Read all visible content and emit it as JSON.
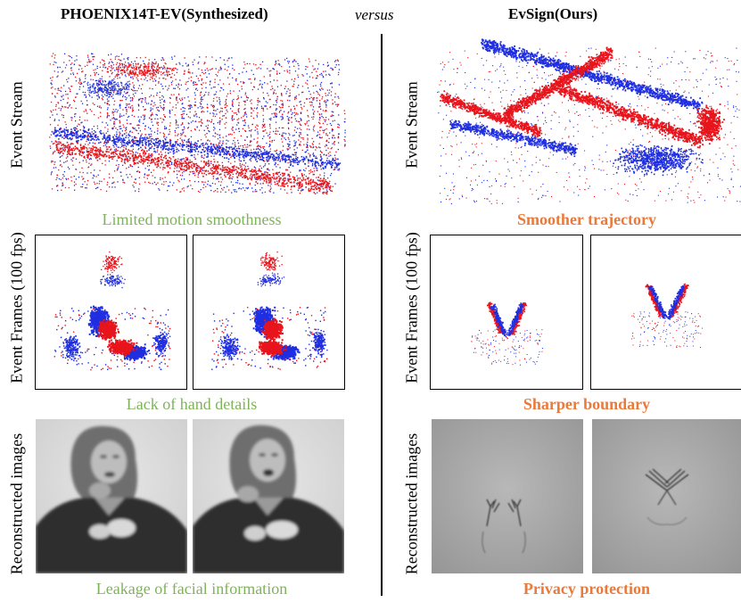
{
  "header": {
    "left_title": "PHOENIX14T-EV(Synthesized)",
    "middle": "versus",
    "right_title": "EvSign(Ours)"
  },
  "row_labels": {
    "stream": "Event Stream",
    "frames": "Event Frames  (100 fps)",
    "recon": "Reconstructed images"
  },
  "captions": {
    "left": {
      "stream": "Limited motion smoothness",
      "frames": "Lack of hand details",
      "recon": "Leakage of facial information"
    },
    "right": {
      "stream": "Smoother trajectory",
      "frames": "Sharper boundary",
      "recon": "Privacy protection"
    }
  },
  "colors": {
    "event_pos": "#e8141c",
    "event_neg": "#1f2ee0",
    "left_caption": "#7fb35a",
    "right_caption": "#ea7a3b"
  }
}
